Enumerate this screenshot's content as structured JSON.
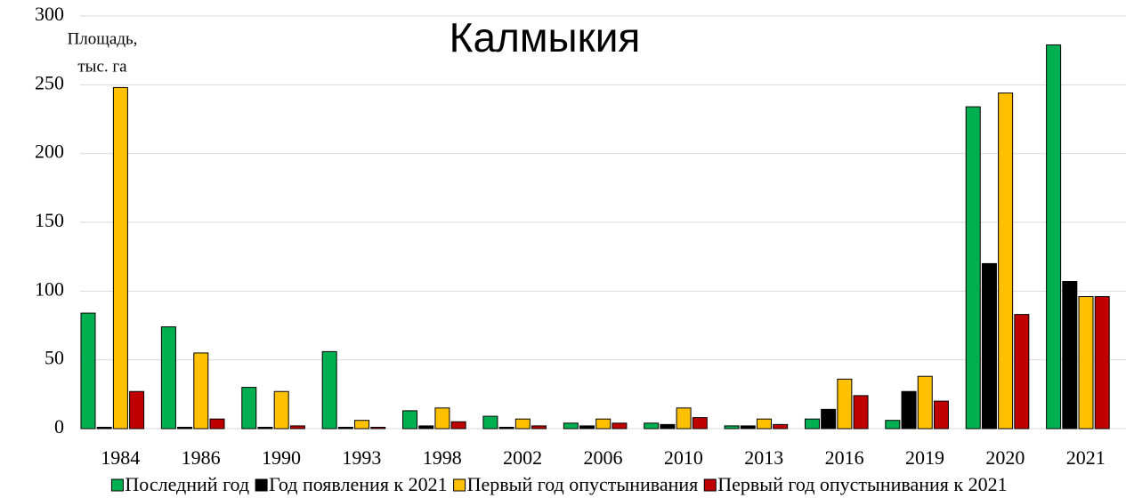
{
  "chart_data": {
    "type": "bar",
    "title": "Калмыкия",
    "y_label": [
      "Площадь,",
      "тыс. га"
    ],
    "categories": [
      "1984",
      "1986",
      "1990",
      "1993",
      "1998",
      "2002",
      "2006",
      "2010",
      "2013",
      "2016",
      "2019",
      "2020",
      "2021"
    ],
    "series": [
      {
        "name": "Последний год",
        "color": "#00b050",
        "values": [
          84,
          74,
          30,
          56,
          13,
          9,
          4,
          4,
          2,
          7,
          6,
          234,
          279
        ]
      },
      {
        "name": "Год появления к 2021",
        "color": "#000000",
        "values": [
          1,
          1,
          1,
          1,
          2,
          1,
          2,
          3,
          2,
          14,
          27,
          120,
          107
        ]
      },
      {
        "name": "Первый год опустынивания",
        "color": "#ffc000",
        "values": [
          248,
          55,
          27,
          6,
          15,
          7,
          7,
          15,
          7,
          36,
          38,
          244,
          96
        ]
      },
      {
        "name": "Первый год опустынивания к 2021",
        "color": "#c00000",
        "values": [
          27,
          7,
          2,
          1,
          5,
          2,
          4,
          8,
          3,
          24,
          20,
          83,
          96
        ]
      }
    ],
    "ylim": [
      0,
      300
    ],
    "yticks": [
      0,
      50,
      100,
      150,
      200,
      250,
      300
    ],
    "grid": true,
    "legend": "bottom"
  }
}
